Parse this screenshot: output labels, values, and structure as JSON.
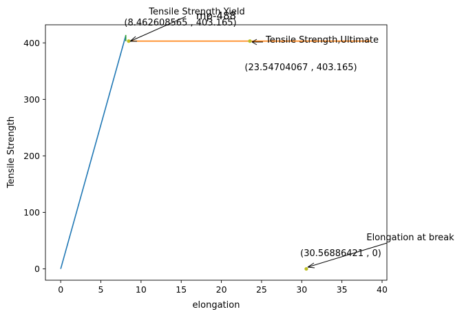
{
  "chart_data": {
    "type": "line",
    "title": "mp-488",
    "xlabel": "elongation",
    "ylabel": "Tensile Strength",
    "xlim": [
      -1.9,
      40.6
    ],
    "ylim": [
      -20,
      432
    ],
    "xticks": [
      0,
      5,
      10,
      15,
      20,
      25,
      30,
      35,
      40
    ],
    "yticks": [
      0,
      100,
      200,
      300,
      400
    ],
    "grid": false,
    "series": [
      {
        "color": "#1f77b4",
        "x": [
          0,
          8.1
        ],
        "y": [
          0,
          413
        ]
      },
      {
        "color": "#ff7f0e",
        "x": [
          8.46,
          38.6
        ],
        "y": [
          403.165,
          403.165
        ]
      },
      {
        "color": "#2ca02c",
        "x": [
          8.1,
          8.1
        ],
        "y": [
          403,
          414
        ]
      }
    ],
    "points": [
      {
        "x": 8.462608565,
        "y": 403.165,
        "color": "#bcbd22"
      },
      {
        "x": 23.54704067,
        "y": 403.165,
        "color": "#bcbd22"
      },
      {
        "x": 30.56886421,
        "y": 0,
        "color": "#bcbd22"
      }
    ],
    "annotations": [
      {
        "label": "Tensile Strength Yield",
        "coords": "(8.462608565 , 403.165)"
      },
      {
        "label": "Tensile Strength,Ultimate",
        "coords": "(23.54704067 , 403.165)"
      },
      {
        "label": "Elongation at break",
        "coords": "(30.56886421 , 0)"
      }
    ]
  }
}
